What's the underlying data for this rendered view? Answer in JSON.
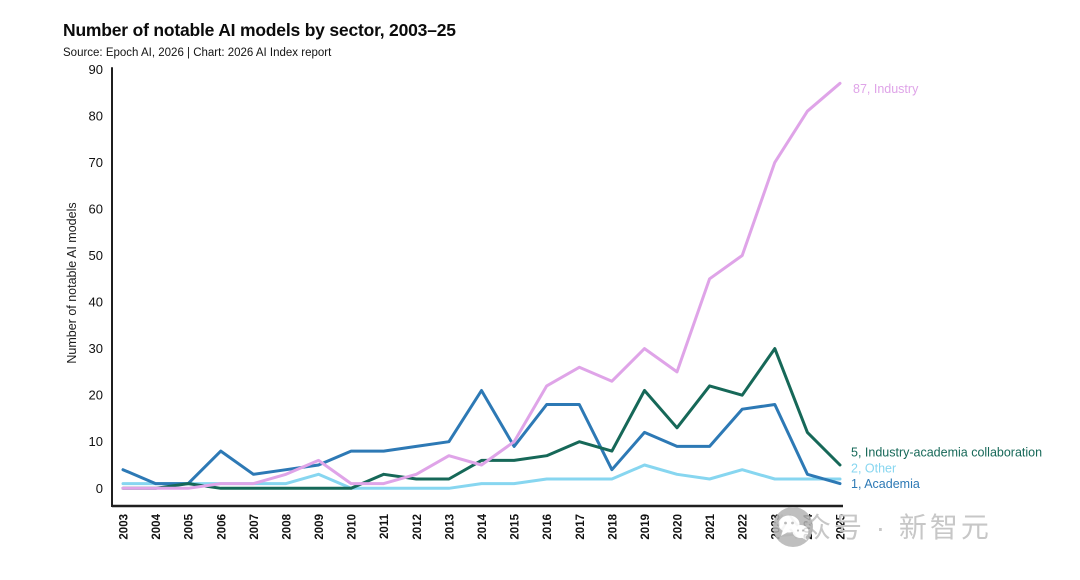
{
  "header": {
    "title": "Number of notable AI models by sector, 2003–25",
    "subtitle": "Source: Epoch AI, 2026 | Chart: 2026 AI Index report"
  },
  "chart_data": {
    "type": "line",
    "title": "Number of notable AI models by sector, 2003–25",
    "xlabel": "",
    "ylabel": "Number of notable AI models",
    "ylim": [
      0,
      90
    ],
    "yticks": [
      0,
      10,
      20,
      30,
      40,
      50,
      60,
      70,
      80,
      90
    ],
    "grid": false,
    "legend_position": "end-of-line-labels",
    "x": [
      "2003",
      "2004",
      "2005",
      "2006",
      "2007",
      "2008",
      "2009",
      "2010",
      "2011",
      "2012",
      "2013",
      "2014",
      "2015",
      "2016",
      "2017",
      "2018",
      "2019",
      "2020",
      "2021",
      "2022",
      "2023",
      "2024",
      "2025"
    ],
    "series": [
      {
        "name": "Industry",
        "color": "#dfa4e8",
        "end_label": "87, Industry",
        "end_value": 87,
        "values": [
          0,
          0,
          0,
          1,
          1,
          3,
          6,
          1,
          1,
          3,
          7,
          5,
          10,
          22,
          26,
          23,
          30,
          25,
          45,
          50,
          70,
          81,
          87
        ]
      },
      {
        "name": "Industry-academia collaboration",
        "color": "#166858",
        "end_label": "5, Industry-academia collaboration",
        "end_value": 5,
        "values": [
          0,
          0,
          1,
          0,
          0,
          0,
          0,
          0,
          3,
          2,
          2,
          6,
          6,
          7,
          10,
          8,
          21,
          13,
          22,
          20,
          30,
          12,
          5
        ]
      },
      {
        "name": "Other",
        "color": "#87d6f0",
        "end_label": "2, Other",
        "end_value": 2,
        "values": [
          1,
          1,
          1,
          1,
          1,
          1,
          3,
          0,
          0,
          0,
          0,
          1,
          1,
          2,
          2,
          2,
          5,
          3,
          2,
          4,
          2,
          2,
          2
        ]
      },
      {
        "name": "Academia",
        "color": "#2d79b5",
        "end_label": "1, Academia",
        "end_value": 1,
        "values": [
          4,
          1,
          1,
          8,
          3,
          4,
          5,
          8,
          8,
          9,
          10,
          21,
          9,
          18,
          18,
          4,
          12,
          9,
          9,
          17,
          18,
          3,
          1
        ]
      }
    ]
  },
  "watermark": {
    "icon": "wechat-icon",
    "text": "公众号 · 新智元"
  },
  "colors": {
    "axis": "#1f1f1f",
    "tick_text": "#111111",
    "background": "#ffffff",
    "watermark_gray": "#c7c7c7"
  }
}
